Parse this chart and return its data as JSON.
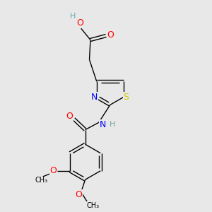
{
  "bg_color": "#e8e8e8",
  "atom_colors": {
    "C": "#000000",
    "H": "#6fa8a8",
    "O": "#ff0000",
    "N": "#0000ff",
    "S": "#cccc00"
  },
  "bond_color": "#000000",
  "font_size": 8,
  "fig_size": [
    3.0,
    3.0
  ],
  "dpi": 100,
  "lw": 1.0,
  "xlim": [
    0,
    10
  ],
  "ylim": [
    0,
    10
  ]
}
